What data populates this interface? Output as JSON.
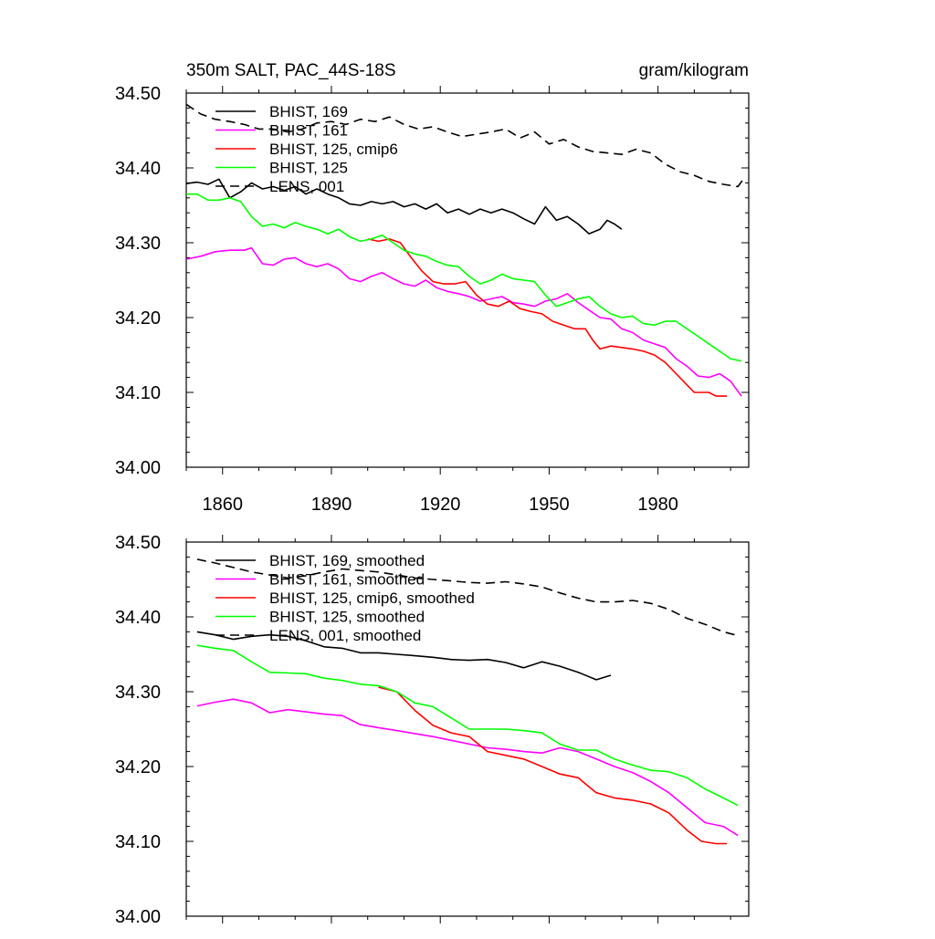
{
  "chart_data": [
    {
      "type": "line",
      "title": "350m SALT, PAC_44S-18S",
      "units": "gram/kilogram",
      "xlim": [
        1850,
        2005
      ],
      "ylim": [
        34.0,
        34.5
      ],
      "x_ticks": [
        1860,
        1890,
        1920,
        1950,
        1980
      ],
      "y_ticks": [
        "34.00",
        "34.10",
        "34.20",
        "34.30",
        "34.40",
        "34.50"
      ],
      "legend_position": "top-left",
      "series": [
        {
          "name": "BHIST, 169",
          "color": "#000000",
          "dash": "solid",
          "x": [
            1850,
            1853,
            1856,
            1859,
            1862,
            1865,
            1868,
            1871,
            1874,
            1877,
            1880,
            1883,
            1886,
            1889,
            1892,
            1895,
            1898,
            1901,
            1904,
            1907,
            1910,
            1913,
            1916,
            1919,
            1922,
            1925,
            1928,
            1931,
            1934,
            1937,
            1940,
            1943,
            1946,
            1949,
            1952,
            1955,
            1958,
            1961,
            1964,
            1966,
            1968,
            1970
          ],
          "y": [
            34.379,
            34.381,
            34.378,
            34.385,
            34.36,
            34.368,
            34.38,
            34.372,
            34.375,
            34.37,
            34.375,
            34.365,
            34.372,
            34.365,
            34.36,
            34.352,
            34.35,
            34.355,
            34.352,
            34.355,
            34.348,
            34.352,
            34.345,
            34.352,
            34.34,
            34.345,
            34.338,
            34.345,
            34.34,
            34.345,
            34.34,
            34.332,
            34.325,
            34.348,
            34.33,
            34.335,
            34.325,
            34.312,
            34.318,
            34.33,
            34.325,
            34.318
          ]
        },
        {
          "name": "BHIST, 161",
          "color": "#ff00ff",
          "dash": "solid",
          "x": [
            1850,
            1854,
            1858,
            1862,
            1866,
            1868,
            1871,
            1874,
            1877,
            1880,
            1883,
            1886,
            1889,
            1892,
            1895,
            1898,
            1901,
            1904,
            1907,
            1910,
            1913,
            1916,
            1919,
            1922,
            1925,
            1928,
            1931,
            1934,
            1937,
            1940,
            1943,
            1946,
            1949,
            1952,
            1955,
            1958,
            1961,
            1964,
            1967,
            1970,
            1973,
            1976,
            1979,
            1982,
            1985,
            1988,
            1991,
            1994,
            1997,
            2000,
            2003
          ],
          "y": [
            34.278,
            34.282,
            34.288,
            34.29,
            34.29,
            34.293,
            34.272,
            34.27,
            34.278,
            34.28,
            34.272,
            34.268,
            34.272,
            34.265,
            34.252,
            34.248,
            34.255,
            34.26,
            34.252,
            34.245,
            34.242,
            34.25,
            34.24,
            34.235,
            34.232,
            34.228,
            34.222,
            34.225,
            34.228,
            34.22,
            34.218,
            34.215,
            34.222,
            34.225,
            34.232,
            34.22,
            34.21,
            34.2,
            34.198,
            34.185,
            34.18,
            34.17,
            34.165,
            34.16,
            34.145,
            34.135,
            34.122,
            34.12,
            34.125,
            34.115,
            34.095
          ]
        },
        {
          "name": "BHIST, 125, cmip6",
          "color": "#ff0000",
          "dash": "solid",
          "x": [
            1900,
            1903,
            1906,
            1909,
            1912,
            1915,
            1918,
            1921,
            1924,
            1927,
            1930,
            1933,
            1936,
            1939,
            1942,
            1945,
            1948,
            1951,
            1954,
            1957,
            1960,
            1962,
            1964,
            1967,
            1970,
            1973,
            1976,
            1979,
            1982,
            1985,
            1988,
            1990,
            1992,
            1994,
            1996,
            1999
          ],
          "y": [
            34.305,
            34.302,
            34.305,
            34.3,
            34.28,
            34.262,
            34.248,
            34.245,
            34.245,
            34.248,
            34.23,
            34.218,
            34.215,
            34.222,
            34.212,
            34.208,
            34.205,
            34.195,
            34.19,
            34.185,
            34.185,
            34.17,
            34.158,
            34.162,
            34.16,
            34.158,
            34.155,
            34.15,
            34.14,
            34.125,
            34.11,
            34.1,
            34.1,
            34.1,
            34.095,
            34.095
          ]
        },
        {
          "name": "BHIST, 125",
          "color": "#00ff00",
          "dash": "solid",
          "x": [
            1850,
            1853,
            1856,
            1859,
            1862,
            1865,
            1868,
            1871,
            1874,
            1877,
            1880,
            1883,
            1886,
            1889,
            1892,
            1895,
            1898,
            1901,
            1904,
            1907,
            1910,
            1913,
            1916,
            1919,
            1922,
            1925,
            1928,
            1931,
            1934,
            1937,
            1940,
            1943,
            1946,
            1949,
            1952,
            1955,
            1958,
            1961,
            1964,
            1967,
            1970,
            1973,
            1976,
            1979,
            1982,
            1985,
            1988,
            1991,
            1994,
            1997,
            2000,
            2003
          ],
          "y": [
            34.365,
            34.365,
            34.357,
            34.357,
            34.36,
            34.355,
            34.335,
            34.322,
            34.325,
            34.32,
            34.327,
            34.322,
            34.318,
            34.312,
            34.318,
            34.308,
            34.302,
            34.305,
            34.31,
            34.3,
            34.29,
            34.285,
            34.282,
            34.275,
            34.27,
            34.268,
            34.255,
            34.245,
            34.25,
            34.258,
            34.252,
            34.25,
            34.248,
            34.23,
            34.215,
            34.22,
            34.225,
            34.228,
            34.215,
            34.205,
            34.2,
            34.202,
            34.192,
            34.19,
            34.195,
            34.195,
            34.185,
            34.175,
            34.165,
            34.155,
            34.145,
            34.142
          ]
        },
        {
          "name": "LENS, 001",
          "color": "#000000",
          "dash": "dashed",
          "x": [
            1850,
            1854,
            1858,
            1862,
            1866,
            1870,
            1874,
            1878,
            1882,
            1886,
            1890,
            1894,
            1898,
            1902,
            1906,
            1910,
            1914,
            1918,
            1922,
            1926,
            1930,
            1934,
            1938,
            1942,
            1946,
            1950,
            1954,
            1958,
            1962,
            1966,
            1970,
            1974,
            1978,
            1982,
            1986,
            1990,
            1994,
            1998,
            2002,
            2004
          ],
          "y": [
            34.485,
            34.472,
            34.465,
            34.462,
            34.458,
            34.452,
            34.452,
            34.448,
            34.452,
            34.46,
            34.462,
            34.458,
            34.465,
            34.462,
            34.468,
            34.458,
            34.452,
            34.455,
            34.448,
            34.442,
            34.445,
            34.448,
            34.452,
            34.44,
            34.448,
            34.432,
            34.438,
            34.428,
            34.422,
            34.42,
            34.418,
            34.425,
            34.42,
            34.405,
            34.395,
            34.39,
            34.382,
            34.378,
            34.375,
            34.388
          ]
        }
      ]
    },
    {
      "type": "line",
      "xlim": [
        1850,
        2005
      ],
      "ylim": [
        34.0,
        34.5
      ],
      "y_ticks": [
        "34.00",
        "34.10",
        "34.20",
        "34.30",
        "34.40",
        "34.50"
      ],
      "legend_position": "top-left",
      "series": [
        {
          "name": "BHIST, 169, smoothed",
          "color": "#000000",
          "dash": "solid",
          "x": [
            1853,
            1858,
            1863,
            1868,
            1873,
            1878,
            1883,
            1888,
            1893,
            1898,
            1903,
            1908,
            1913,
            1918,
            1923,
            1928,
            1933,
            1938,
            1943,
            1948,
            1953,
            1958,
            1963,
            1967
          ],
          "y": [
            34.38,
            34.376,
            34.37,
            34.374,
            34.376,
            34.374,
            34.368,
            34.36,
            34.358,
            34.352,
            34.352,
            34.35,
            34.348,
            34.346,
            34.343,
            34.342,
            34.343,
            34.339,
            34.332,
            34.34,
            34.334,
            34.326,
            34.316,
            34.322
          ]
        },
        {
          "name": "BHIST, 161, smoothed",
          "color": "#ff00ff",
          "dash": "solid",
          "x": [
            1853,
            1858,
            1863,
            1868,
            1873,
            1878,
            1883,
            1888,
            1893,
            1898,
            1903,
            1908,
            1913,
            1918,
            1923,
            1928,
            1933,
            1938,
            1943,
            1948,
            1953,
            1958,
            1963,
            1968,
            1973,
            1978,
            1983,
            1988,
            1993,
            1998,
            2002
          ],
          "y": [
            34.281,
            34.286,
            34.29,
            34.285,
            34.272,
            34.276,
            34.273,
            34.27,
            34.268,
            34.256,
            34.252,
            34.248,
            34.244,
            34.24,
            34.235,
            34.23,
            34.225,
            34.223,
            34.22,
            34.218,
            34.225,
            34.22,
            34.21,
            34.2,
            34.192,
            34.18,
            34.165,
            34.145,
            34.125,
            34.12,
            34.108
          ]
        },
        {
          "name": "BHIST, 125, cmip6, smoothed",
          "color": "#ff0000",
          "dash": "solid",
          "x": [
            1903,
            1908,
            1913,
            1918,
            1923,
            1928,
            1933,
            1938,
            1943,
            1948,
            1953,
            1958,
            1963,
            1968,
            1973,
            1978,
            1983,
            1988,
            1992,
            1996,
            1999
          ],
          "y": [
            34.306,
            34.3,
            34.275,
            34.255,
            34.245,
            34.24,
            34.22,
            34.215,
            34.21,
            34.2,
            34.19,
            34.185,
            34.165,
            34.158,
            34.155,
            34.15,
            34.138,
            34.115,
            34.1,
            34.097,
            34.097
          ]
        },
        {
          "name": "BHIST, 125, smoothed",
          "color": "#00ff00",
          "dash": "solid",
          "x": [
            1853,
            1858,
            1863,
            1868,
            1873,
            1878,
            1883,
            1888,
            1893,
            1898,
            1903,
            1908,
            1913,
            1918,
            1923,
            1928,
            1933,
            1938,
            1943,
            1948,
            1953,
            1958,
            1963,
            1968,
            1973,
            1978,
            1983,
            1988,
            1993,
            1998,
            2002
          ],
          "y": [
            34.362,
            34.358,
            34.355,
            34.34,
            34.326,
            34.325,
            34.324,
            34.318,
            34.315,
            34.31,
            34.308,
            34.3,
            34.285,
            34.28,
            34.265,
            34.25,
            34.25,
            34.25,
            34.248,
            34.245,
            34.23,
            34.222,
            34.222,
            34.21,
            34.202,
            34.195,
            34.193,
            34.185,
            34.17,
            34.158,
            34.148
          ]
        },
        {
          "name": "LENS, 001, smoothed",
          "color": "#000000",
          "dash": "dashed",
          "x": [
            1853,
            1858,
            1863,
            1868,
            1873,
            1878,
            1883,
            1888,
            1893,
            1898,
            1903,
            1908,
            1913,
            1918,
            1923,
            1928,
            1933,
            1938,
            1943,
            1948,
            1953,
            1958,
            1963,
            1968,
            1973,
            1978,
            1983,
            1988,
            1993,
            1998,
            2002
          ],
          "y": [
            34.477,
            34.472,
            34.466,
            34.46,
            34.456,
            34.452,
            34.455,
            34.46,
            34.464,
            34.462,
            34.46,
            34.456,
            34.452,
            34.45,
            34.448,
            34.446,
            34.445,
            34.447,
            34.444,
            34.44,
            34.432,
            34.425,
            34.42,
            34.42,
            34.422,
            34.418,
            34.41,
            34.398,
            34.39,
            34.38,
            34.375
          ]
        }
      ]
    }
  ]
}
